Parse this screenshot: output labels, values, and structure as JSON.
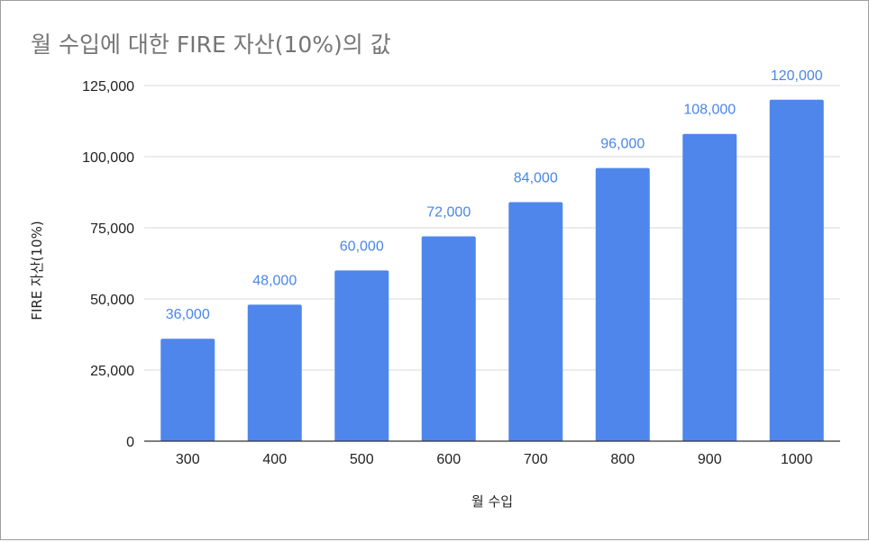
{
  "chart_data": {
    "type": "bar",
    "title": "월 수입에 대한 FIRE 자산(10%)의 값",
    "xlabel": "월 수입",
    "ylabel": "FIRE 자산(10%)",
    "categories": [
      "300",
      "400",
      "500",
      "600",
      "700",
      "800",
      "900",
      "1000"
    ],
    "series": [
      {
        "values": [
          36000,
          48000,
          60000,
          72000,
          84000,
          96000,
          108000,
          120000
        ]
      }
    ],
    "data_labels": [
      "36,000",
      "48,000",
      "60,000",
      "72,000",
      "84,000",
      "96,000",
      "108,000",
      "120,000"
    ],
    "ylim": [
      0,
      125000
    ],
    "yticks": [
      0,
      25000,
      50000,
      75000,
      100000,
      125000
    ],
    "ytick_labels": [
      "0",
      "25,000",
      "50,000",
      "75,000",
      "100,000",
      "125,000"
    ],
    "grid": true,
    "legend": "none",
    "bar_color": "#4f86ec",
    "label_color": "#4a86e8"
  }
}
